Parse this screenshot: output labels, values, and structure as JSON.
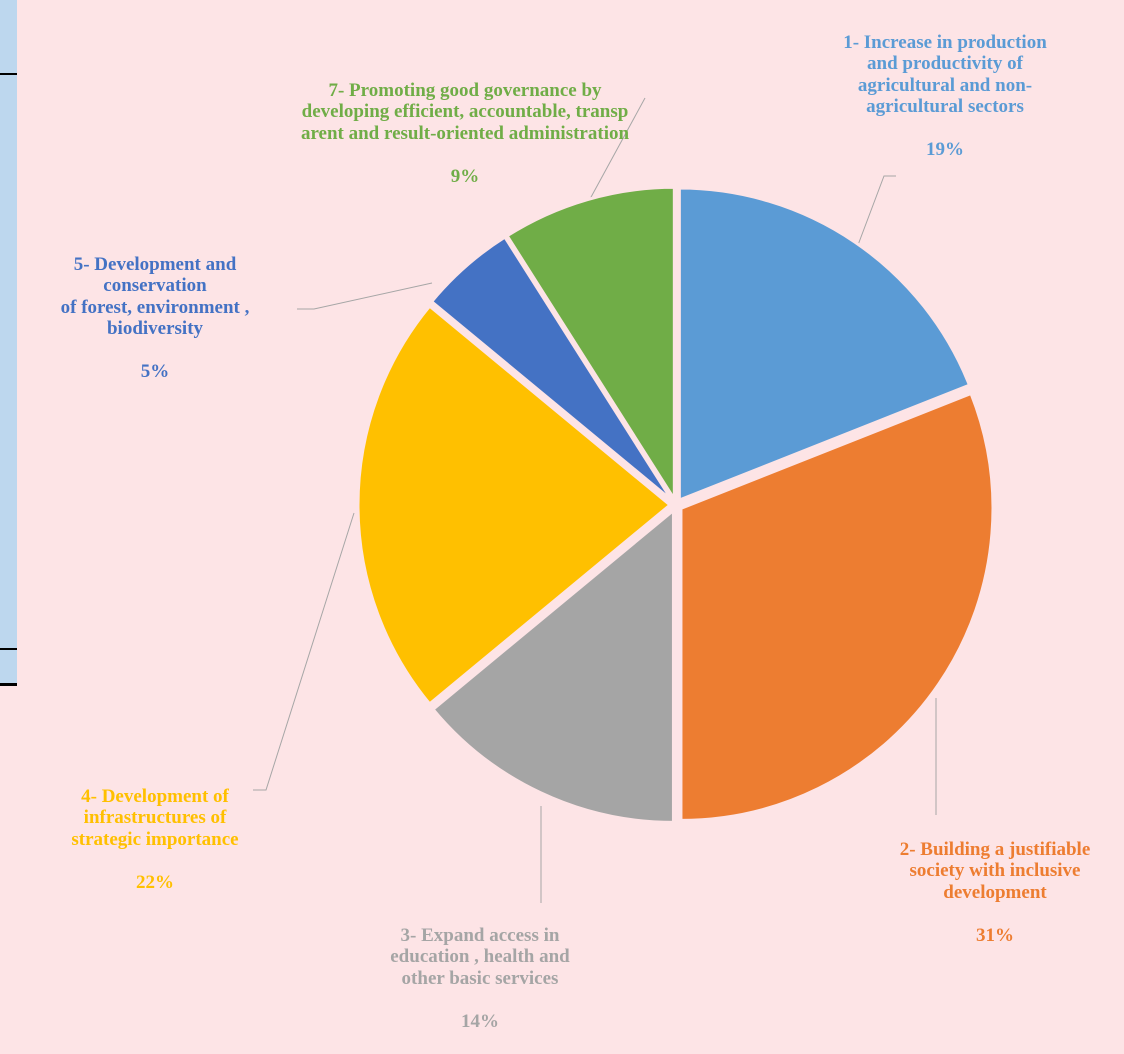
{
  "chart_data": {
    "type": "pie",
    "title": "",
    "start_angle_deg": 0,
    "direction": "clockwise",
    "slices": [
      {
        "label": "1- Increase in production\nand productivity of\nagricultural and non-\nagricultural sectors",
        "value": 19,
        "value_label": "19%",
        "color": "#5b9bd5"
      },
      {
        "label": "2- Building a justifiable\nsociety with inclusive\ndevelopment",
        "value": 31,
        "value_label": "31%",
        "color": "#ed7d31"
      },
      {
        "label": "3- Expand access in\neducation , health and\nother basic services",
        "value": 14,
        "value_label": "14%",
        "color": "#a5a5a5"
      },
      {
        "label": "4- Development of\ninfrastructures of\nstrategic importance",
        "value": 22,
        "value_label": "22%",
        "color": "#ffc000"
      },
      {
        "label": "5- Development and\nconservation\nof forest, environment ,\nbiodiversity",
        "value": 5,
        "value_label": "5%",
        "color": "#4472c4"
      },
      {
        "label": "7- Promoting good governance by\ndeveloping efficient, accountable, transp\narent and result-oriented administration",
        "value": 9,
        "value_label": "9%",
        "color": "#70ad47"
      }
    ]
  }
}
